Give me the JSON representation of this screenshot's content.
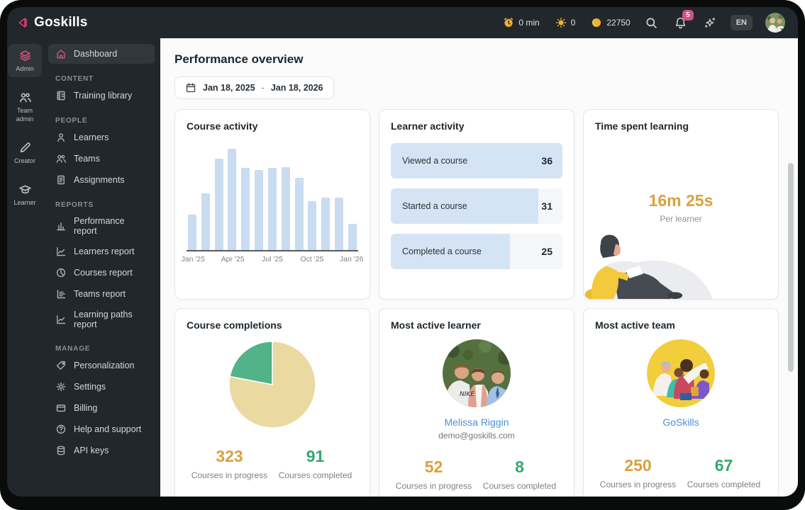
{
  "brand": {
    "name": "Goskills"
  },
  "colors": {
    "accent_pink": "#D6517D",
    "gold": "#D9A13E",
    "green": "#35A871",
    "link_blue": "#4A90D9",
    "bar_blue": "#C9DCF0",
    "row_blue": "#D5E4F4",
    "pie_tan": "#EAD9A0",
    "pie_green": "#52B389"
  },
  "topbar": {
    "stats": [
      {
        "name": "time-credits-stat",
        "icon": "clock-icon",
        "label": "0 min"
      },
      {
        "name": "streak-stat",
        "icon": "sun-icon",
        "label": "0"
      },
      {
        "name": "coins-stat",
        "icon": "coin-icon",
        "label": "22750"
      }
    ],
    "notification_count": "5",
    "language": "EN"
  },
  "rail": {
    "items": [
      {
        "name": "rail-item-admin",
        "icon": "layers-icon",
        "label": "Admin",
        "active": true
      },
      {
        "name": "rail-item-team-admin",
        "icon": "team-icon",
        "label": "Team admin",
        "active": false
      },
      {
        "name": "rail-item-creator",
        "icon": "pencil-icon",
        "label": "Creator",
        "active": false
      },
      {
        "name": "rail-item-learner",
        "icon": "grad-cap-icon",
        "label": "Learner",
        "active": false
      }
    ]
  },
  "sidebar": {
    "dashboard": {
      "icon": "home-icon",
      "label": "Dashboard",
      "active": true
    },
    "sections": [
      {
        "title": "CONTENT",
        "items": [
          {
            "name": "sidebar-item-training-library",
            "icon": "library-icon",
            "label": "Training library"
          }
        ]
      },
      {
        "title": "PEOPLE",
        "items": [
          {
            "name": "sidebar-item-learners",
            "icon": "person-icon",
            "label": "Learners"
          },
          {
            "name": "sidebar-item-teams",
            "icon": "people-icon",
            "label": "Teams"
          },
          {
            "name": "sidebar-item-assignments",
            "icon": "clipboard-icon",
            "label": "Assignments"
          }
        ]
      },
      {
        "title": "REPORTS",
        "items": [
          {
            "name": "sidebar-item-performance-report",
            "icon": "bar-chart-icon",
            "label": "Performance report"
          },
          {
            "name": "sidebar-item-learners-report",
            "icon": "line-chart-icon",
            "label": "Learners report"
          },
          {
            "name": "sidebar-item-courses-report",
            "icon": "pie-chart-icon",
            "label": "Courses report"
          },
          {
            "name": "sidebar-item-teams-report",
            "icon": "hbar-chart-icon",
            "label": "Teams report"
          },
          {
            "name": "sidebar-item-learning-paths-report",
            "icon": "line-chart-icon",
            "label": "Learning paths report"
          }
        ]
      },
      {
        "title": "MANAGE",
        "items": [
          {
            "name": "sidebar-item-personalization",
            "icon": "tag-icon",
            "label": "Personalization"
          },
          {
            "name": "sidebar-item-settings",
            "icon": "gear-icon",
            "label": "Settings"
          },
          {
            "name": "sidebar-item-billing",
            "icon": "card-icon",
            "label": "Billing"
          },
          {
            "name": "sidebar-item-help-support",
            "icon": "help-icon",
            "label": "Help and support"
          },
          {
            "name": "sidebar-item-api-keys",
            "icon": "api-icon",
            "label": "API keys"
          }
        ]
      }
    ]
  },
  "main": {
    "title": "Performance overview",
    "date_range": {
      "start": "Jan 18, 2025",
      "separator": "-",
      "end": "Jan 18, 2026"
    }
  },
  "cards": {
    "course_activity": {
      "title": "Course activity",
      "chart_data": {
        "type": "bar",
        "x": [
          "Jan '25",
          "Feb '25",
          "Mar '25",
          "Apr '25",
          "May '25",
          "Jun '25",
          "Jul '25",
          "Aug '25",
          "Sep '25",
          "Oct '25",
          "Nov '25",
          "Dec '25",
          "Jan '26"
        ],
        "values_pct_of_max": [
          35,
          56,
          90,
          100,
          81,
          79,
          81,
          82,
          71,
          48,
          52,
          52,
          26
        ],
        "tick_labels": [
          "Jan '25",
          "Apr '25",
          "Jul '25",
          "Oct '25",
          "Jan '26"
        ],
        "tick_indices": [
          0,
          3,
          6,
          9,
          12
        ],
        "note": "no y-axis labels shown; values are relative bar heights"
      }
    },
    "learner_activity": {
      "title": "Learner activity",
      "chart_data": {
        "type": "bar",
        "orientation": "horizontal",
        "rows": [
          {
            "label": "Viewed a course",
            "value": 36
          },
          {
            "label": "Started a course",
            "value": 31
          },
          {
            "label": "Completed a course",
            "value": 25
          }
        ]
      }
    },
    "time_spent": {
      "title": "Time spent learning",
      "value": "16m 25s",
      "caption": "Per learner"
    },
    "course_completions": {
      "title": "Course completions",
      "chart_data": {
        "type": "pie",
        "slices": [
          {
            "label": "Courses in progress",
            "value": 323,
            "color": "#EAD9A0"
          },
          {
            "label": "Courses completed",
            "value": 91,
            "color": "#52B389"
          }
        ]
      },
      "stats": [
        {
          "value": "323",
          "label": "Courses in progress",
          "tone": "gold"
        },
        {
          "value": "91",
          "label": "Courses completed",
          "tone": "green"
        }
      ]
    },
    "most_active_learner": {
      "title": "Most active learner",
      "name": "Melissa Riggin",
      "email": "demo@goskills.com",
      "stats": [
        {
          "value": "52",
          "label": "Courses in progress",
          "tone": "gold"
        },
        {
          "value": "8",
          "label": "Courses completed",
          "tone": "green"
        }
      ]
    },
    "most_active_team": {
      "title": "Most active team",
      "name": "GoSkills",
      "stats": [
        {
          "value": "250",
          "label": "Courses in progress",
          "tone": "gold"
        },
        {
          "value": "67",
          "label": "Courses completed",
          "tone": "green"
        }
      ]
    }
  }
}
